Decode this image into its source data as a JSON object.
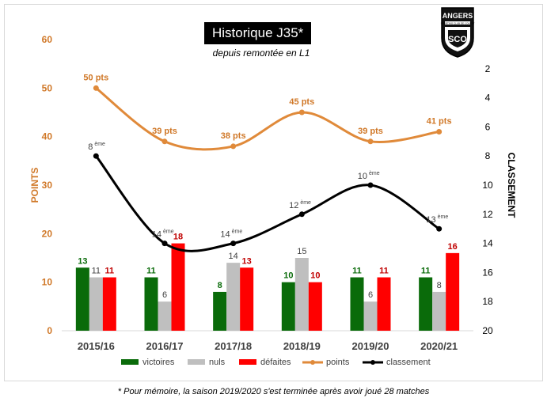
{
  "chart_data": {
    "type": "bar",
    "title": "Historique J35*",
    "subtitle": "depuis remontée en L1",
    "categories": [
      "2015/16",
      "2016/17",
      "2017/18",
      "2018/19",
      "2019/20",
      "2020/21"
    ],
    "ylabel_left": "POINTS",
    "ylabel_right": "CLASSEMENT",
    "ylim_left": [
      0,
      60
    ],
    "yticks_left": [
      "0",
      "10",
      "20",
      "30",
      "40",
      "50",
      "60"
    ],
    "ylim_right": [
      20,
      0
    ],
    "yticks_right": [
      "2",
      "4",
      "6",
      "8",
      "10",
      "12",
      "14",
      "16",
      "18",
      "20"
    ],
    "series": [
      {
        "name": "victoires",
        "kind": "bar",
        "color": "#0a6b0a",
        "label_color": "#0a6b0a",
        "values": [
          13,
          11,
          8,
          10,
          11,
          11
        ],
        "labels": [
          "13",
          "11",
          "8",
          "10",
          "11",
          "11"
        ]
      },
      {
        "name": "nuls",
        "kind": "bar",
        "color": "#bfbfbf",
        "label_color": "#404040",
        "values": [
          11,
          6,
          14,
          15,
          6,
          8
        ],
        "labels": [
          "11",
          "6",
          "14",
          "15",
          "6",
          "8"
        ]
      },
      {
        "name": "défaites",
        "kind": "bar",
        "color": "#ff0000",
        "label_color": "#c00000",
        "values": [
          11,
          18,
          13,
          10,
          11,
          16
        ],
        "labels": [
          "11",
          "18",
          "13",
          "10",
          "11",
          "16"
        ]
      },
      {
        "name": "points",
        "kind": "line",
        "axis": "left",
        "color": "#e08a3a",
        "label_color": "#d07828",
        "values": [
          50,
          39,
          38,
          45,
          39,
          41
        ],
        "labels": [
          "50 pts",
          "39 pts",
          "38 pts",
          "45 pts",
          "39 pts",
          "41 pts"
        ]
      },
      {
        "name": "classement",
        "kind": "line",
        "axis": "right",
        "color": "#000000",
        "label_color": "#404040",
        "values": [
          8,
          14,
          14,
          12,
          10,
          13
        ],
        "labels": [
          "8",
          "14",
          "14",
          "12",
          "10",
          "13"
        ],
        "label_suffix": "ème"
      }
    ],
    "legend": "bottom",
    "grid": false
  },
  "footnote": "*  Pour mémoire, la saison 2019/2020 s'est terminée après avoir joué 28 matches",
  "logo": {
    "text": "ANGERS",
    "small_text": "SPORTING CLUB DE L'OUEST",
    "number": "SCO"
  }
}
